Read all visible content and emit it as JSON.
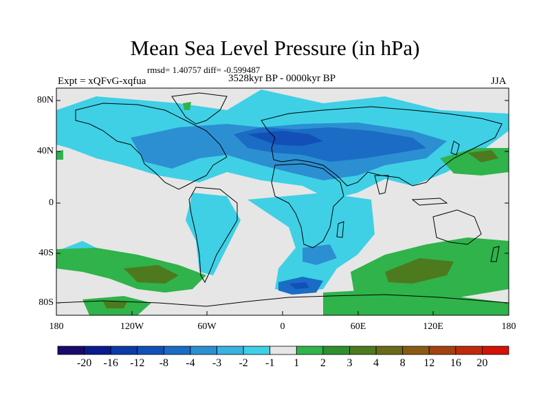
{
  "title": "Mean Sea Level Pressure (in hPa)",
  "stats": "rmsd= 1.40757 diff= -0.599487",
  "experiment": "Expt = xQFvG-xqfua",
  "period": "3528kyr BP - 0000kyr BP",
  "season": "JJA",
  "y_ticks": [
    "80N",
    "40N",
    "0",
    "40S",
    "80S"
  ],
  "x_ticks": [
    "180",
    "120W",
    "60W",
    "0",
    "60E",
    "120E",
    "180"
  ],
  "colorbar": {
    "colors": [
      "#1a0a6b",
      "#0b1a8f",
      "#0d3aa8",
      "#1250b8",
      "#1a6cc4",
      "#2c8fd2",
      "#39b2e0",
      "#3fd0e6",
      "#e6e6e6",
      "#2fb34a",
      "#2f8f2f",
      "#4d7a1f",
      "#6b6a1a",
      "#8a5a14",
      "#a34210",
      "#bf2a0c",
      "#d41208"
    ],
    "labels": [
      "-20",
      "-16",
      "-12",
      "-8",
      "-4",
      "-3",
      "-2",
      "-1",
      "1",
      "2",
      "3",
      "4",
      "8",
      "12",
      "16",
      "20"
    ]
  },
  "map_colors": {
    "background": "#e6e6e6",
    "cyan": "#3fd0e6",
    "light_blue": "#2c8fd2",
    "blue": "#1a6cc4",
    "dark_blue": "#1250b8",
    "green": "#2fb34a",
    "olive": "#4d7a1f"
  }
}
